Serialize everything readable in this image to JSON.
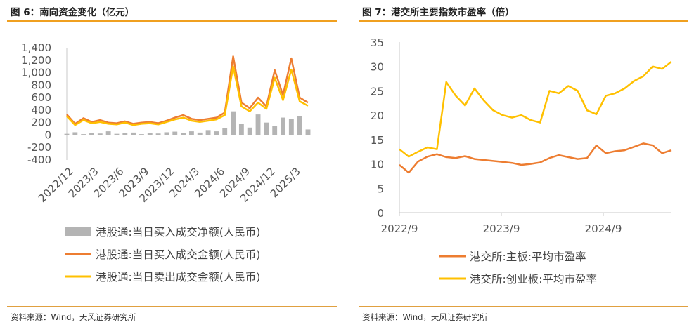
{
  "left": {
    "title": "图 6：南向资金变化（亿元）",
    "source": "资料来源：Wind，天风证券研究所",
    "chart_data": {
      "type": "line",
      "title": "南向资金变化（亿元）",
      "ylim": [
        -400,
        1400
      ],
      "yticks": [
        "1,400",
        "1,200",
        "1,000",
        "800",
        "600",
        "400",
        "200",
        "0",
        "-200",
        "-400"
      ],
      "ytick_values": [
        1400,
        1200,
        1000,
        800,
        600,
        400,
        200,
        0,
        -200,
        -400
      ],
      "xticks": [
        "2022/12",
        "2023/3",
        "2023/6",
        "2023/9",
        "2023/12",
        "2024/3",
        "2024/6",
        "2024/9",
        "2024/12",
        "2025/3"
      ],
      "x": [
        0,
        1,
        2,
        3,
        4,
        5,
        6,
        7,
        8,
        9,
        10,
        11,
        12,
        13,
        14,
        15,
        16,
        17,
        18,
        19,
        20,
        21,
        22,
        23,
        24,
        25,
        26,
        27,
        28,
        29
      ],
      "series": [
        {
          "name": "港股通:当日买入成交净额(人民币)",
          "color": "#b4b4b4",
          "kind": "bar",
          "values": [
            20,
            45,
            15,
            30,
            25,
            60,
            20,
            35,
            40,
            15,
            30,
            25,
            45,
            55,
            35,
            60,
            40,
            80,
            60,
            110,
            380,
            180,
            120,
            330,
            200,
            150,
            280,
            260,
            300,
            90
          ]
        },
        {
          "name": "港股通:当日买入成交金额(人民币)",
          "color": "#ed7d31",
          "kind": "line",
          "values": [
            330,
            180,
            270,
            210,
            240,
            200,
            190,
            220,
            180,
            200,
            210,
            190,
            230,
            280,
            320,
            260,
            240,
            260,
            280,
            360,
            1260,
            520,
            430,
            600,
            460,
            1040,
            640,
            1230,
            600,
            520
          ]
        },
        {
          "name": "港股通:当日卖出成交金额(人民币)",
          "color": "#ffc000",
          "kind": "line",
          "values": [
            300,
            160,
            240,
            190,
            210,
            180,
            170,
            200,
            160,
            180,
            190,
            170,
            210,
            250,
            280,
            230,
            210,
            230,
            250,
            320,
            1100,
            460,
            380,
            520,
            420,
            920,
            560,
            1050,
            540,
            470
          ]
        }
      ]
    }
  },
  "right": {
    "title": "图 7：港交所主要指数市盈率（倍）",
    "source": "资料来源：Wind，天风证券研究所",
    "chart_data": {
      "type": "line",
      "title": "港交所主要指数市盈率（倍）",
      "ylim": [
        0,
        35
      ],
      "yticks": [
        "35",
        "30",
        "25",
        "20",
        "15",
        "10",
        "5",
        "0"
      ],
      "ytick_values": [
        35,
        30,
        25,
        20,
        15,
        10,
        5,
        0
      ],
      "xticks": [
        "2022/9",
        "2023/9",
        "2024/9"
      ],
      "x": [
        0,
        1,
        2,
        3,
        4,
        5,
        6,
        7,
        8,
        9,
        10,
        11,
        12,
        13,
        14,
        15,
        16,
        17,
        18,
        19,
        20,
        21,
        22,
        23,
        24,
        25,
        26,
        27,
        28,
        29
      ],
      "series": [
        {
          "name": "港交所:主板:平均市盈率",
          "color": "#ed7d31",
          "values": [
            9.8,
            8.2,
            10.5,
            11.5,
            12.0,
            11.4,
            11.2,
            11.6,
            11.0,
            10.8,
            10.6,
            10.4,
            10.2,
            9.8,
            10.0,
            10.3,
            11.2,
            11.8,
            11.4,
            11.0,
            11.2,
            13.8,
            12.2,
            12.6,
            12.8,
            13.5,
            14.2,
            13.8,
            12.2,
            12.8
          ]
        },
        {
          "name": "港交所:创业板:平均市盈率",
          "color": "#ffc000",
          "values": [
            13.0,
            11.5,
            12.5,
            13.4,
            13.0,
            26.8,
            24.0,
            22.0,
            25.5,
            23.0,
            21.0,
            20.0,
            19.5,
            20.0,
            19.0,
            18.5,
            25.0,
            24.5,
            26.0,
            25.0,
            21.0,
            20.2,
            24.0,
            24.5,
            25.5,
            27.0,
            28.0,
            30.0,
            29.5,
            31.0
          ]
        }
      ]
    }
  }
}
